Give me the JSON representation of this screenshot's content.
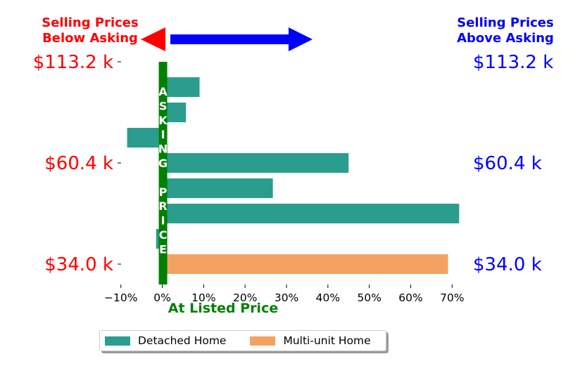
{
  "header": {
    "left_title_line1": "Selling Prices",
    "left_title_line2": "Below Asking",
    "right_title_line1": "Selling Prices",
    "right_title_line2": "Above Asking"
  },
  "colors": {
    "below": "#ff0000",
    "above": "#0000ff",
    "asking": "#008000",
    "detached": "#2a9d8f",
    "multi_unit": "#f4a261"
  },
  "asking_label": "ASKING PRICE",
  "xlabel": "At Listed Price",
  "legend": {
    "detached": "Detached Home",
    "multi_unit": "Multi-unit Home"
  },
  "chart_data": {
    "type": "bar",
    "orientation": "horizontal",
    "xlim": [
      -0.12,
      0.73
    ],
    "x_ticks": [
      -0.1,
      0,
      0.1,
      0.2,
      0.3,
      0.4,
      0.5,
      0.6,
      0.7
    ],
    "x_tick_labels": [
      "−10%",
      "0%",
      "10%",
      "20%",
      "30%",
      "40%",
      "50%",
      "60%",
      "70%"
    ],
    "bars": [
      {
        "series": "Detached Home",
        "value": 0.09
      },
      {
        "series": "Detached Home",
        "value": 0.057
      },
      {
        "series": "Detached Home",
        "value": -0.085
      },
      {
        "series": "Detached Home",
        "value": 0.45
      },
      {
        "series": "Detached Home",
        "value": 0.267
      },
      {
        "series": "Detached Home",
        "value": 0.717
      },
      {
        "series": "Detached Home",
        "value": -0.015
      },
      {
        "series": "Multi-unit Home",
        "value": 0.69
      }
    ],
    "y_tick_labels": [
      {
        "label": "$113.2 k",
        "bar_index": -1.0
      },
      {
        "label": "$60.4 k",
        "bar_index": 3.0
      },
      {
        "label": "$34.0 k",
        "bar_index": 7.0
      }
    ]
  }
}
